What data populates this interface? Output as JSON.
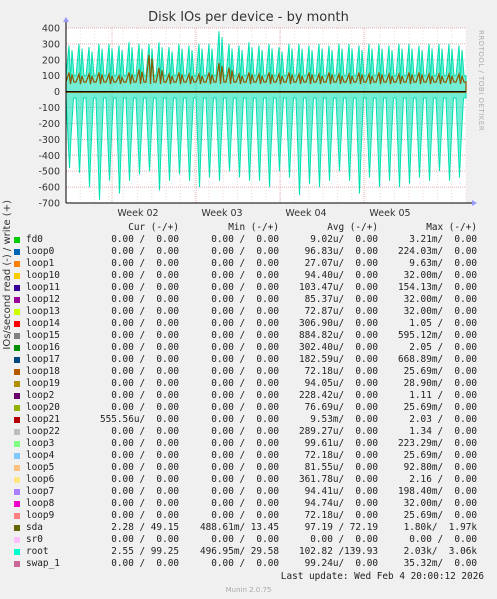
{
  "title": "Disk IOs per device - by month",
  "ylabel": "IOs/second read (-) / write (+)",
  "side_credit": "RRDTOOL / TOBI OETIKER",
  "colors": {
    "background": "#f0f0f0",
    "plot_bg": "#ffffff",
    "grid": "#e4b0b0",
    "axis": "#000000",
    "main_series": "#00e0b0",
    "brown_series": "#8a5a00",
    "orange_series": "#e0a000"
  },
  "legend_headers": {
    "cur": "Cur (-/+)",
    "min": "Min (-/+)",
    "avg": "Avg (-/+)",
    "max": "Max (-/+)"
  },
  "legend": [
    {
      "name": "fd0",
      "color": "#00cc00",
      "cur": "0.00 /  0.00",
      "min": "0.00 /  0.00",
      "avg": "9.02u/  0.00",
      "max": "3.21m/  0.00"
    },
    {
      "name": "loop0",
      "color": "#0066b3",
      "cur": "0.00 /  0.00",
      "min": "0.00 /  0.00",
      "avg": "96.83u/  0.00",
      "max": "224.03m/  0.00"
    },
    {
      "name": "loop1",
      "color": "#ff8000",
      "cur": "0.00 /  0.00",
      "min": "0.00 /  0.00",
      "avg": "27.07u/  0.00",
      "max": "9.63m/  0.00"
    },
    {
      "name": "loop10",
      "color": "#ffcc00",
      "cur": "0.00 /  0.00",
      "min": "0.00 /  0.00",
      "avg": "94.40u/  0.00",
      "max": "32.00m/  0.00"
    },
    {
      "name": "loop11",
      "color": "#330099",
      "cur": "0.00 /  0.00",
      "min": "0.00 /  0.00",
      "avg": "103.47u/  0.00",
      "max": "154.13m/  0.00"
    },
    {
      "name": "loop12",
      "color": "#990099",
      "cur": "0.00 /  0.00",
      "min": "0.00 /  0.00",
      "avg": "85.37u/  0.00",
      "max": "32.00m/  0.00"
    },
    {
      "name": "loop13",
      "color": "#ccff00",
      "cur": "0.00 /  0.00",
      "min": "0.00 /  0.00",
      "avg": "72.87u/  0.00",
      "max": "32.00m/  0.00"
    },
    {
      "name": "loop14",
      "color": "#ff0000",
      "cur": "0.00 /  0.00",
      "min": "0.00 /  0.00",
      "avg": "306.90u/  0.00",
      "max": "1.05 /  0.00"
    },
    {
      "name": "loop15",
      "color": "#808080",
      "cur": "0.00 /  0.00",
      "min": "0.00 /  0.00",
      "avg": "884.82u/  0.00",
      "max": "595.12m/  0.00"
    },
    {
      "name": "loop16",
      "color": "#008f00",
      "cur": "0.00 /  0.00",
      "min": "0.00 /  0.00",
      "avg": "302.40u/  0.00",
      "max": "2.05 /  0.00"
    },
    {
      "name": "loop17",
      "color": "#00487d",
      "cur": "0.00 /  0.00",
      "min": "0.00 /  0.00",
      "avg": "182.59u/  0.00",
      "max": "668.89m/  0.00"
    },
    {
      "name": "loop18",
      "color": "#b35a00",
      "cur": "0.00 /  0.00",
      "min": "0.00 /  0.00",
      "avg": "72.18u/  0.00",
      "max": "25.69m/  0.00"
    },
    {
      "name": "loop19",
      "color": "#b38f00",
      "cur": "0.00 /  0.00",
      "min": "0.00 /  0.00",
      "avg": "94.05u/  0.00",
      "max": "28.90m/  0.00"
    },
    {
      "name": "loop2",
      "color": "#6b006b",
      "cur": "0.00 /  0.00",
      "min": "0.00 /  0.00",
      "avg": "228.42u/  0.00",
      "max": "1.11 /  0.00"
    },
    {
      "name": "loop20",
      "color": "#8fb300",
      "cur": "0.00 /  0.00",
      "min": "0.00 /  0.00",
      "avg": "76.69u/  0.00",
      "max": "25.69m/  0.00"
    },
    {
      "name": "loop21",
      "color": "#b30000",
      "cur": "555.56u/  0.00",
      "min": "0.00 /  0.00",
      "avg": "9.53m/  0.00",
      "max": "2.03 /  0.00"
    },
    {
      "name": "loop22",
      "color": "#bebebe",
      "cur": "0.00 /  0.00",
      "min": "0.00 /  0.00",
      "avg": "289.27u/  0.00",
      "max": "1.34 /  0.00"
    },
    {
      "name": "loop3",
      "color": "#80ff80",
      "cur": "0.00 /  0.00",
      "min": "0.00 /  0.00",
      "avg": "99.61u/  0.00",
      "max": "223.29m/  0.00"
    },
    {
      "name": "loop4",
      "color": "#80c9ff",
      "cur": "0.00 /  0.00",
      "min": "0.00 /  0.00",
      "avg": "72.18u/  0.00",
      "max": "25.69m/  0.00"
    },
    {
      "name": "loop5",
      "color": "#ffc080",
      "cur": "0.00 /  0.00",
      "min": "0.00 /  0.00",
      "avg": "81.55u/  0.00",
      "max": "92.80m/  0.00"
    },
    {
      "name": "loop6",
      "color": "#ffe680",
      "cur": "0.00 /  0.00",
      "min": "0.00 /  0.00",
      "avg": "361.78u/  0.00",
      "max": "2.16 /  0.00"
    },
    {
      "name": "loop7",
      "color": "#aa80ff",
      "cur": "0.00 /  0.00",
      "min": "0.00 /  0.00",
      "avg": "94.41u/  0.00",
      "max": "198.40m/  0.00"
    },
    {
      "name": "loop8",
      "color": "#ee00cc",
      "cur": "0.00 /  0.00",
      "min": "0.00 /  0.00",
      "avg": "94.74u/  0.00",
      "max": "32.00m/  0.00"
    },
    {
      "name": "loop9",
      "color": "#ff8080",
      "cur": "0.00 /  0.00",
      "min": "0.00 /  0.00",
      "avg": "72.18u/  0.00",
      "max": "25.69m/  0.00"
    },
    {
      "name": "sda",
      "color": "#666600",
      "cur": "2.28 / 49.15",
      "min": "488.61m/ 13.45",
      "avg": "97.19 / 72.19",
      "max": "1.80k/  1.97k"
    },
    {
      "name": "sr0",
      "color": "#ffbfff",
      "cur": "0.00 /  0.00",
      "min": "0.00 /  0.00",
      "avg": "0.00 /  0.00",
      "max": "0.00 /  0.00"
    },
    {
      "name": "root",
      "color": "#00ffcc",
      "cur": "2.55 / 99.25",
      "min": "496.95m/ 29.58",
      "avg": "102.82 /139.93",
      "max": "2.03k/  3.06k"
    },
    {
      "name": "swap_1",
      "color": "#cc6699",
      "cur": "0.00 /  0.00",
      "min": "0.00 /  0.00",
      "avg": "99.24u/  0.00",
      "max": "35.32m/  0.00"
    }
  ],
  "footer": {
    "last_update": "Last update: Wed Feb  4 20:00:12 2026",
    "version": "Munin 2.0.75"
  },
  "chart_data": {
    "type": "area",
    "title": "Disk IOs per device - by month",
    "ylabel": "IOs/second read (-) / write (+)",
    "ylim": [
      -700,
      400
    ],
    "yticks": [
      400,
      300,
      200,
      100,
      0,
      -100,
      -200,
      -300,
      -400,
      -500,
      -600,
      -700
    ],
    "xticks": [
      "Week 02",
      "Week 03",
      "Week 04",
      "Week 05"
    ],
    "grid": true,
    "series": [
      {
        "name": "root",
        "color": "#00e0b0",
        "write_peaks": [
          290,
          300,
          280,
          300,
          300,
          290,
          310,
          300,
          300,
          310,
          280,
          300,
          290,
          300,
          300,
          380,
          300,
          290,
          310,
          290,
          300,
          280,
          300,
          300,
          290,
          300,
          290,
          300,
          300,
          290,
          300,
          300,
          290,
          300,
          300,
          290,
          300,
          300,
          300,
          290
        ],
        "read_troughs": [
          -480,
          -510,
          -600,
          -680,
          -560,
          -640,
          -560,
          -520,
          -500,
          -620,
          -560,
          -520,
          -560,
          -600,
          -540,
          -560,
          -500,
          -540,
          -560,
          -560,
          -600,
          -500,
          -540,
          -650,
          -580,
          -600,
          -560,
          -500,
          -560,
          -640,
          -540,
          -600,
          -560,
          -600,
          -580,
          -540,
          -560,
          -500,
          -560,
          -540
        ],
        "write_baseline": 100,
        "read_baseline": -40
      },
      {
        "name": "sda",
        "color": "#8a5a00",
        "write_peaks": [
          120,
          110,
          110,
          120,
          110,
          100,
          120,
          140,
          230,
          150,
          110,
          120,
          110,
          110,
          120,
          180,
          150,
          110,
          120,
          110,
          120,
          110,
          120,
          110,
          120,
          110,
          120,
          110,
          110,
          120,
          110,
          120,
          110,
          110,
          120,
          120,
          110,
          110,
          110,
          110
        ],
        "write_baseline": 60,
        "read_baseline": -5
      }
    ]
  }
}
